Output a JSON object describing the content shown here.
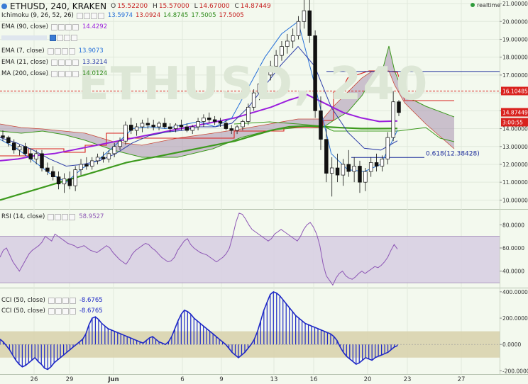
{
  "header": {
    "title": "ETHUSD, 240, KRAKEN",
    "open_label": "O",
    "open": "15.52200",
    "high_label": "H",
    "high": "15.57000",
    "low_label": "L",
    "low": "14.67000",
    "close_label": "C",
    "close": "14.87449",
    "realtime": "realtime",
    "watermark": "ETHUSD, 240"
  },
  "legend": {
    "ichimoku": {
      "label": "Ichimoku (9, 26, 52, 26)",
      "v1": "13.5974",
      "v2": "13.0924",
      "v3": "14.8745",
      "v4": "17.5005",
      "v5": "17.5005"
    },
    "ema90": {
      "label": "EMA (90, close)",
      "value": "14.4292"
    },
    "ema7": {
      "label": "EMA (7, close)",
      "value": "13.9073"
    },
    "ema21": {
      "label": "EMA (21, close)",
      "value": "13.3214"
    },
    "ma200": {
      "label": "MA (200, close)",
      "value": "14.0124"
    },
    "rsi": {
      "label": "RSI (14, close)",
      "value": "58.9527"
    },
    "cci1": {
      "label": "CCI (50, close)",
      "value": "-8.6765"
    },
    "cci2": {
      "label": "CCI (50, close)",
      "value": "-8.6765"
    }
  },
  "colors": {
    "ema90": "#9b1fdd",
    "ema7": "#2670d9",
    "ema21": "#2d3da8",
    "ma200": "#3d9a1e",
    "kijun": "#d9211d",
    "span": "#3d9a1e",
    "cloud": "#a892b0",
    "rsi": "#8d56b5",
    "cci": "#1e28c6",
    "bull": "#ffffff",
    "bear": "#111111"
  },
  "chart_data": [
    {
      "type": "candlestick",
      "panel": "price",
      "yticks": [
        "21.00000",
        "20.00000",
        "19.00000",
        "18.00000",
        "17.00000",
        "16.00000",
        "15.00000",
        "14.00000",
        "13.00000",
        "12.00000",
        "11.00000",
        "10.00000"
      ],
      "ylim": [
        9.5,
        21.2
      ],
      "xticks": [
        "26",
        "29",
        "Jun",
        "6",
        "9",
        "13",
        "16",
        "20",
        "23",
        "27"
      ],
      "price_labels": {
        "resistance": "16.10485",
        "last": "14.87449",
        "countdown": "3:00:55"
      },
      "annotation": "0.618(12.38428)",
      "levels": {
        "resistance": 16.10485,
        "fib": 12.38428,
        "hline": 17.2
      },
      "candles_ohlc": [
        [
          13.6,
          13.9,
          13.3,
          13.5
        ],
        [
          13.5,
          13.6,
          13.0,
          13.2
        ],
        [
          13.2,
          13.4,
          12.6,
          12.8
        ],
        [
          12.8,
          13.1,
          12.5,
          13.0
        ],
        [
          13.0,
          13.2,
          12.5,
          12.6
        ],
        [
          12.6,
          12.9,
          12.1,
          12.3
        ],
        [
          12.3,
          12.8,
          12.0,
          12.6
        ],
        [
          12.6,
          12.8,
          11.6,
          11.8
        ],
        [
          11.8,
          12.1,
          11.4,
          11.6
        ],
        [
          11.6,
          11.9,
          11.1,
          11.3
        ],
        [
          11.3,
          11.6,
          10.6,
          10.9
        ],
        [
          10.9,
          11.5,
          10.4,
          11.2
        ],
        [
          11.2,
          11.6,
          10.6,
          10.8
        ],
        [
          10.8,
          11.9,
          10.5,
          11.7
        ],
        [
          11.7,
          12.3,
          11.4,
          12.0
        ],
        [
          12.0,
          12.4,
          11.7,
          11.9
        ],
        [
          11.9,
          12.4,
          11.7,
          12.2
        ],
        [
          12.2,
          12.6,
          12.0,
          12.4
        ],
        [
          12.4,
          12.7,
          12.1,
          12.3
        ],
        [
          12.3,
          12.8,
          12.1,
          12.6
        ],
        [
          12.6,
          13.2,
          12.4,
          13.0
        ],
        [
          13.0,
          13.5,
          12.8,
          13.3
        ],
        [
          13.3,
          14.4,
          13.1,
          14.2
        ],
        [
          14.2,
          14.6,
          13.7,
          13.9
        ],
        [
          13.9,
          14.3,
          13.6,
          14.1
        ],
        [
          14.1,
          14.5,
          13.8,
          14.3
        ],
        [
          14.3,
          14.6,
          14.0,
          14.2
        ],
        [
          14.2,
          14.5,
          13.9,
          14.1
        ],
        [
          14.1,
          14.4,
          13.9,
          14.3
        ],
        [
          14.3,
          14.6,
          14.0,
          14.1
        ],
        [
          14.1,
          14.3,
          13.8,
          14.0
        ],
        [
          14.0,
          14.3,
          13.8,
          14.2
        ],
        [
          14.2,
          14.5,
          13.9,
          14.1
        ],
        [
          14.1,
          14.3,
          13.8,
          13.9
        ],
        [
          13.9,
          14.2,
          13.7,
          14.1
        ],
        [
          14.1,
          14.6,
          13.9,
          14.4
        ],
        [
          14.4,
          14.8,
          14.1,
          14.6
        ],
        [
          14.6,
          14.9,
          14.3,
          14.5
        ],
        [
          14.5,
          14.7,
          14.2,
          14.4
        ],
        [
          14.4,
          14.6,
          14.1,
          14.3
        ],
        [
          14.3,
          14.5,
          13.9,
          14.0
        ],
        [
          14.0,
          14.2,
          13.7,
          13.9
        ],
        [
          13.9,
          14.2,
          13.7,
          14.1
        ],
        [
          14.1,
          14.5,
          13.9,
          14.4
        ],
        [
          14.4,
          15.4,
          14.2,
          15.2
        ],
        [
          15.2,
          16.2,
          15.0,
          16.0
        ],
        [
          16.0,
          16.8,
          15.6,
          16.5
        ],
        [
          16.5,
          17.3,
          16.2,
          17.0
        ],
        [
          17.0,
          17.8,
          16.7,
          17.5
        ],
        [
          17.5,
          18.4,
          17.2,
          18.1
        ],
        [
          18.1,
          18.9,
          17.8,
          18.6
        ],
        [
          18.6,
          19.3,
          18.2,
          18.9
        ],
        [
          18.9,
          19.6,
          18.5,
          19.2
        ],
        [
          19.2,
          20.3,
          19.0,
          20.0
        ],
        [
          20.0,
          21.4,
          19.6,
          20.6
        ],
        [
          20.6,
          21.3,
          18.8,
          19.2
        ],
        [
          19.2,
          19.5,
          14.6,
          15.0
        ],
        [
          15.0,
          15.8,
          12.8,
          13.4
        ],
        [
          13.4,
          14.0,
          11.0,
          11.5
        ],
        [
          11.5,
          12.4,
          10.2,
          11.8
        ],
        [
          11.8,
          12.6,
          11.0,
          11.4
        ],
        [
          11.4,
          12.3,
          10.8,
          12.0
        ],
        [
          12.0,
          12.8,
          11.3,
          11.6
        ],
        [
          11.6,
          12.4,
          11.0,
          11.9
        ],
        [
          11.9,
          12.2,
          10.4,
          11.0
        ],
        [
          11.0,
          11.8,
          10.5,
          11.6
        ],
        [
          11.6,
          12.4,
          11.3,
          12.1
        ],
        [
          12.1,
          12.6,
          11.6,
          11.9
        ],
        [
          11.9,
          12.5,
          11.6,
          12.3
        ],
        [
          12.3,
          13.8,
          12.0,
          13.5
        ],
        [
          13.5,
          16.1,
          13.3,
          15.5
        ],
        [
          15.5,
          15.6,
          14.7,
          14.9
        ]
      ],
      "series": [
        {
          "name": "EMA (90, close)",
          "role": "ema90",
          "values": [
            12.2,
            12.3,
            12.5,
            12.6,
            12.8,
            13.0,
            13.2,
            13.4,
            13.6,
            13.8,
            14.0,
            14.2,
            14.4,
            14.6,
            14.9,
            15.2,
            15.6,
            15.9,
            15.4,
            14.9,
            14.6,
            14.4,
            14.43
          ]
        },
        {
          "name": "MA (200, close)",
          "role": "ma200",
          "values": [
            10.0,
            10.3,
            10.6,
            10.9,
            11.2,
            11.5,
            11.8,
            12.1,
            12.3,
            12.5,
            12.7,
            12.9,
            13.1,
            13.3,
            13.6,
            13.9,
            14.1,
            14.15,
            14.1,
            14.05,
            14.0,
            14.0,
            14.01
          ]
        },
        {
          "name": "EMA (7, close)",
          "role": "ema7",
          "values": [
            13.4,
            12.9,
            12.2,
            11.5,
            11.0,
            11.8,
            12.3,
            13.1,
            14.0,
            14.1,
            14.0,
            14.2,
            14.4,
            14.1,
            14.6,
            16.3,
            18.0,
            19.3,
            20.0,
            16.5,
            12.6,
            11.7,
            11.6,
            12.0,
            13.91
          ]
        },
        {
          "name": "EMA (21, close)",
          "role": "ema21",
          "values": [
            13.5,
            13.2,
            12.8,
            12.3,
            11.9,
            12.0,
            12.2,
            12.6,
            13.2,
            13.6,
            13.8,
            13.9,
            14.1,
            14.1,
            14.3,
            15.2,
            16.4,
            17.6,
            18.6,
            17.5,
            15.2,
            13.8,
            12.9,
            12.8,
            13.32
          ]
        }
      ]
    },
    {
      "type": "line",
      "panel": "rsi",
      "yticks": [
        "80.0000",
        "60.0000",
        "40.0000"
      ],
      "ylim": [
        27,
        93
      ],
      "band": [
        30,
        70
      ],
      "values": [
        52,
        58,
        60,
        54,
        48,
        44,
        40,
        45,
        50,
        55,
        58,
        60,
        62,
        65,
        70,
        68,
        66,
        72,
        70,
        68,
        66,
        64,
        63,
        62,
        60,
        61,
        62,
        60,
        58,
        57,
        56,
        58,
        60,
        62,
        60,
        56,
        53,
        50,
        48,
        46,
        50,
        55,
        58,
        60,
        62,
        64,
        63,
        60,
        58,
        55,
        52,
        50,
        48,
        49,
        52,
        58,
        62,
        66,
        68,
        63,
        60,
        58,
        56,
        55,
        54,
        52,
        50,
        48,
        50,
        52,
        55,
        60,
        70,
        82,
        90,
        89,
        85,
        80,
        76,
        74,
        72,
        70,
        68,
        66,
        68,
        72,
        74,
        76,
        74,
        72,
        70,
        68,
        66,
        70,
        76,
        80,
        82,
        78,
        72,
        62,
        46,
        36,
        32,
        28,
        34,
        38,
        40,
        36,
        34,
        33,
        35,
        38,
        40,
        38,
        40,
        42,
        44,
        43,
        45,
        48,
        52,
        58,
        63,
        59
      ]
    },
    {
      "type": "bar",
      "panel": "cci",
      "yticks": [
        "400.0000",
        "200.0000",
        "0.0000",
        "-200.0000"
      ],
      "ylim": [
        -225,
        410
      ],
      "band": [
        -100,
        100
      ],
      "values": [
        40,
        20,
        -10,
        -40,
        -80,
        -120,
        -150,
        -170,
        -160,
        -140,
        -120,
        -100,
        -130,
        -150,
        -180,
        -190,
        -170,
        -140,
        -120,
        -100,
        -80,
        -60,
        -40,
        -20,
        0,
        20,
        40,
        80,
        150,
        200,
        210,
        190,
        160,
        140,
        120,
        110,
        100,
        90,
        80,
        70,
        60,
        50,
        40,
        30,
        20,
        10,
        30,
        50,
        60,
        40,
        20,
        10,
        0,
        20,
        60,
        120,
        180,
        230,
        260,
        250,
        230,
        200,
        180,
        160,
        140,
        120,
        100,
        80,
        60,
        40,
        20,
        0,
        -30,
        -60,
        -80,
        -100,
        -80,
        -60,
        -30,
        0,
        40,
        100,
        180,
        260,
        320,
        380,
        400,
        390,
        370,
        340,
        310,
        280,
        250,
        220,
        200,
        180,
        160,
        150,
        140,
        130,
        120,
        110,
        100,
        90,
        80,
        60,
        30,
        -20,
        -60,
        -90,
        -110,
        -130,
        -150,
        -140,
        -120,
        -100,
        -110,
        -120,
        -100,
        -90,
        -80,
        -70,
        -60,
        -40,
        -20,
        -9
      ]
    }
  ]
}
